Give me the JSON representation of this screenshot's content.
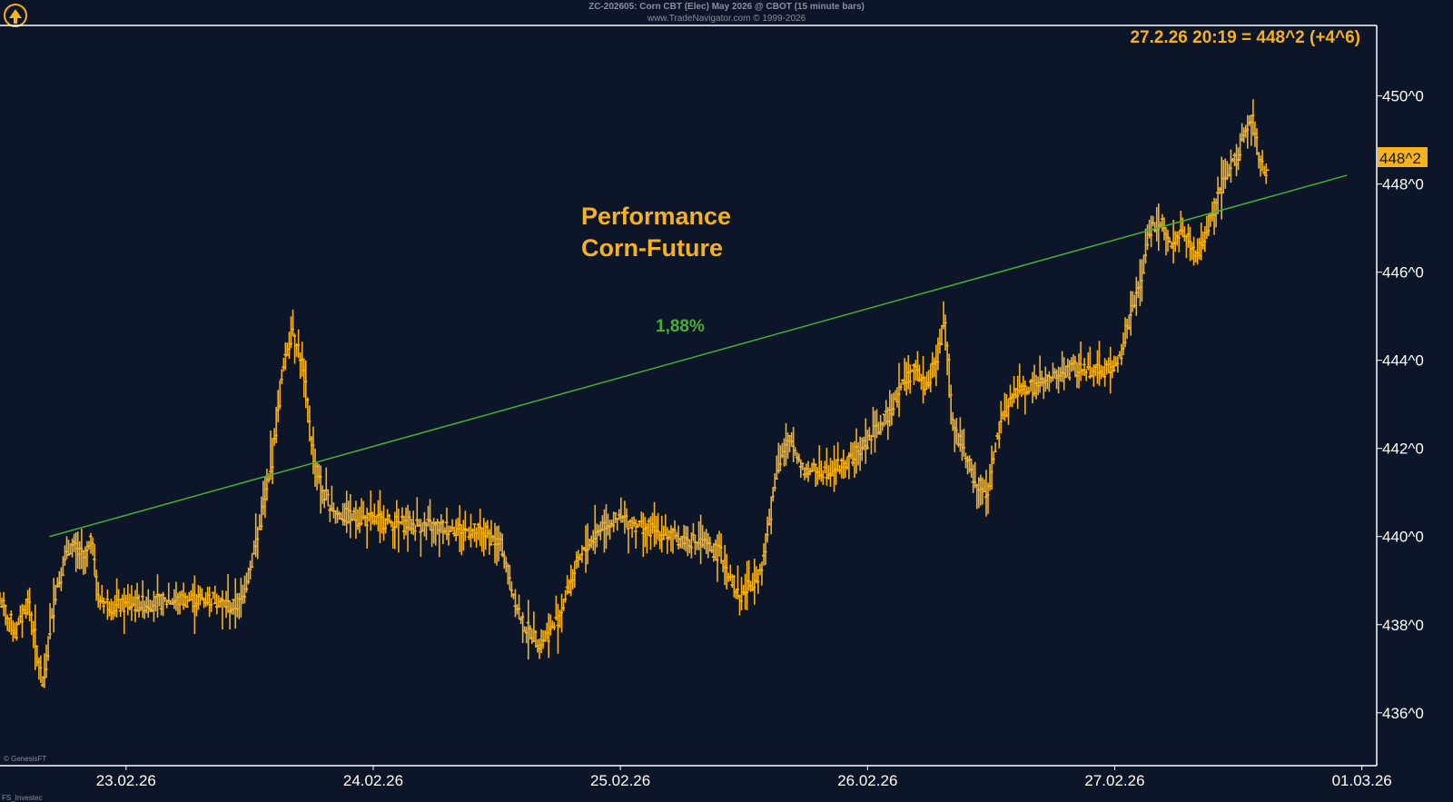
{
  "header": {
    "line1": "ZC-202605:  Corn CBT (Elec) May 2026 @ CBOT  (15 minute bars)",
    "line2": "www.TradeNavigator.com © 1999-2026"
  },
  "corner_note": "© GenesisFT",
  "bottom_note": "FS_Investec",
  "colors": {
    "background": "#0d1529",
    "bars": "#f5b21d",
    "trend": "#45b035",
    "axis_text": "#ffffff",
    "accent": "#f5b21d"
  },
  "chart_data": {
    "type": "bar",
    "subtype": "ohlc-15min",
    "title": "Performance",
    "subtitle": "Corn-Future",
    "last_quote": "27.2.26 20:19 = 448^2 (+4^6)",
    "price_tag": "448^2",
    "trend_label": "1,88%",
    "x_ticks": [
      "23.02.26",
      "24.02.26",
      "25.02.26",
      "26.02.26",
      "27.02.26",
      "01.03.26"
    ],
    "y_ticks": [
      "436^0",
      "438^0",
      "440^0",
      "442^0",
      "444^0",
      "446^0",
      "448^0",
      "450^0"
    ],
    "ylim": [
      434.8,
      451.6
    ],
    "xlim_days": [
      22.49,
      28.06
    ],
    "trend_line": {
      "from": [
        22.69,
        440.0
      ],
      "to": [
        27.94,
        448.2
      ]
    },
    "price_path": [
      [
        22.49,
        438.5
      ],
      [
        22.55,
        437.8
      ],
      [
        22.6,
        438.6
      ],
      [
        22.66,
        436.5
      ],
      [
        22.68,
        437.5
      ],
      [
        22.71,
        438.8
      ],
      [
        22.77,
        439.8
      ],
      [
        22.83,
        439.5
      ],
      [
        22.86,
        440.0
      ],
      [
        22.88,
        438.6
      ],
      [
        22.95,
        438.4
      ],
      [
        23.1,
        438.5
      ],
      [
        23.35,
        438.6
      ],
      [
        23.42,
        438.4
      ],
      [
        23.46,
        438.5
      ],
      [
        23.52,
        439.8
      ],
      [
        23.58,
        441.5
      ],
      [
        23.63,
        443.8
      ],
      [
        23.67,
        444.8
      ],
      [
        23.71,
        443.8
      ],
      [
        23.75,
        442.0
      ],
      [
        23.79,
        441.0
      ],
      [
        23.85,
        440.5
      ],
      [
        23.95,
        440.4
      ],
      [
        24.1,
        440.3
      ],
      [
        24.3,
        440.2
      ],
      [
        24.45,
        440.1
      ],
      [
        24.52,
        439.7
      ],
      [
        24.55,
        438.9
      ],
      [
        24.6,
        438.0
      ],
      [
        24.67,
        437.6
      ],
      [
        24.72,
        437.9
      ],
      [
        24.76,
        438.4
      ],
      [
        24.8,
        439.1
      ],
      [
        24.86,
        439.8
      ],
      [
        24.93,
        440.3
      ],
      [
        25.0,
        440.4
      ],
      [
        25.1,
        440.2
      ],
      [
        25.2,
        440.0
      ],
      [
        25.3,
        439.9
      ],
      [
        25.4,
        439.6
      ],
      [
        25.48,
        438.6
      ],
      [
        25.52,
        438.9
      ],
      [
        25.57,
        439.3
      ],
      [
        25.63,
        441.6
      ],
      [
        25.68,
        442.2
      ],
      [
        25.74,
        441.5
      ],
      [
        25.83,
        441.5
      ],
      [
        25.92,
        441.7
      ],
      [
        26.0,
        442.2
      ],
      [
        26.06,
        442.6
      ],
      [
        26.13,
        443.4
      ],
      [
        26.18,
        443.8
      ],
      [
        26.23,
        443.4
      ],
      [
        26.28,
        444.1
      ],
      [
        26.31,
        444.9
      ],
      [
        26.34,
        442.5
      ],
      [
        26.38,
        442.0
      ],
      [
        26.43,
        441.2
      ],
      [
        26.48,
        441.0
      ],
      [
        26.52,
        442.2
      ],
      [
        26.56,
        443.0
      ],
      [
        26.6,
        443.3
      ],
      [
        26.67,
        443.4
      ],
      [
        26.75,
        443.6
      ],
      [
        26.83,
        443.8
      ],
      [
        26.93,
        443.8
      ],
      [
        27.0,
        443.8
      ],
      [
        27.05,
        444.8
      ],
      [
        27.1,
        445.8
      ],
      [
        27.14,
        447.0
      ],
      [
        27.18,
        447.2
      ],
      [
        27.23,
        446.6
      ],
      [
        27.27,
        447.0
      ],
      [
        27.32,
        446.3
      ],
      [
        27.36,
        446.8
      ],
      [
        27.42,
        447.8
      ],
      [
        27.5,
        448.8
      ],
      [
        27.55,
        449.5
      ],
      [
        27.58,
        448.5
      ],
      [
        27.62,
        448.2
      ]
    ]
  }
}
